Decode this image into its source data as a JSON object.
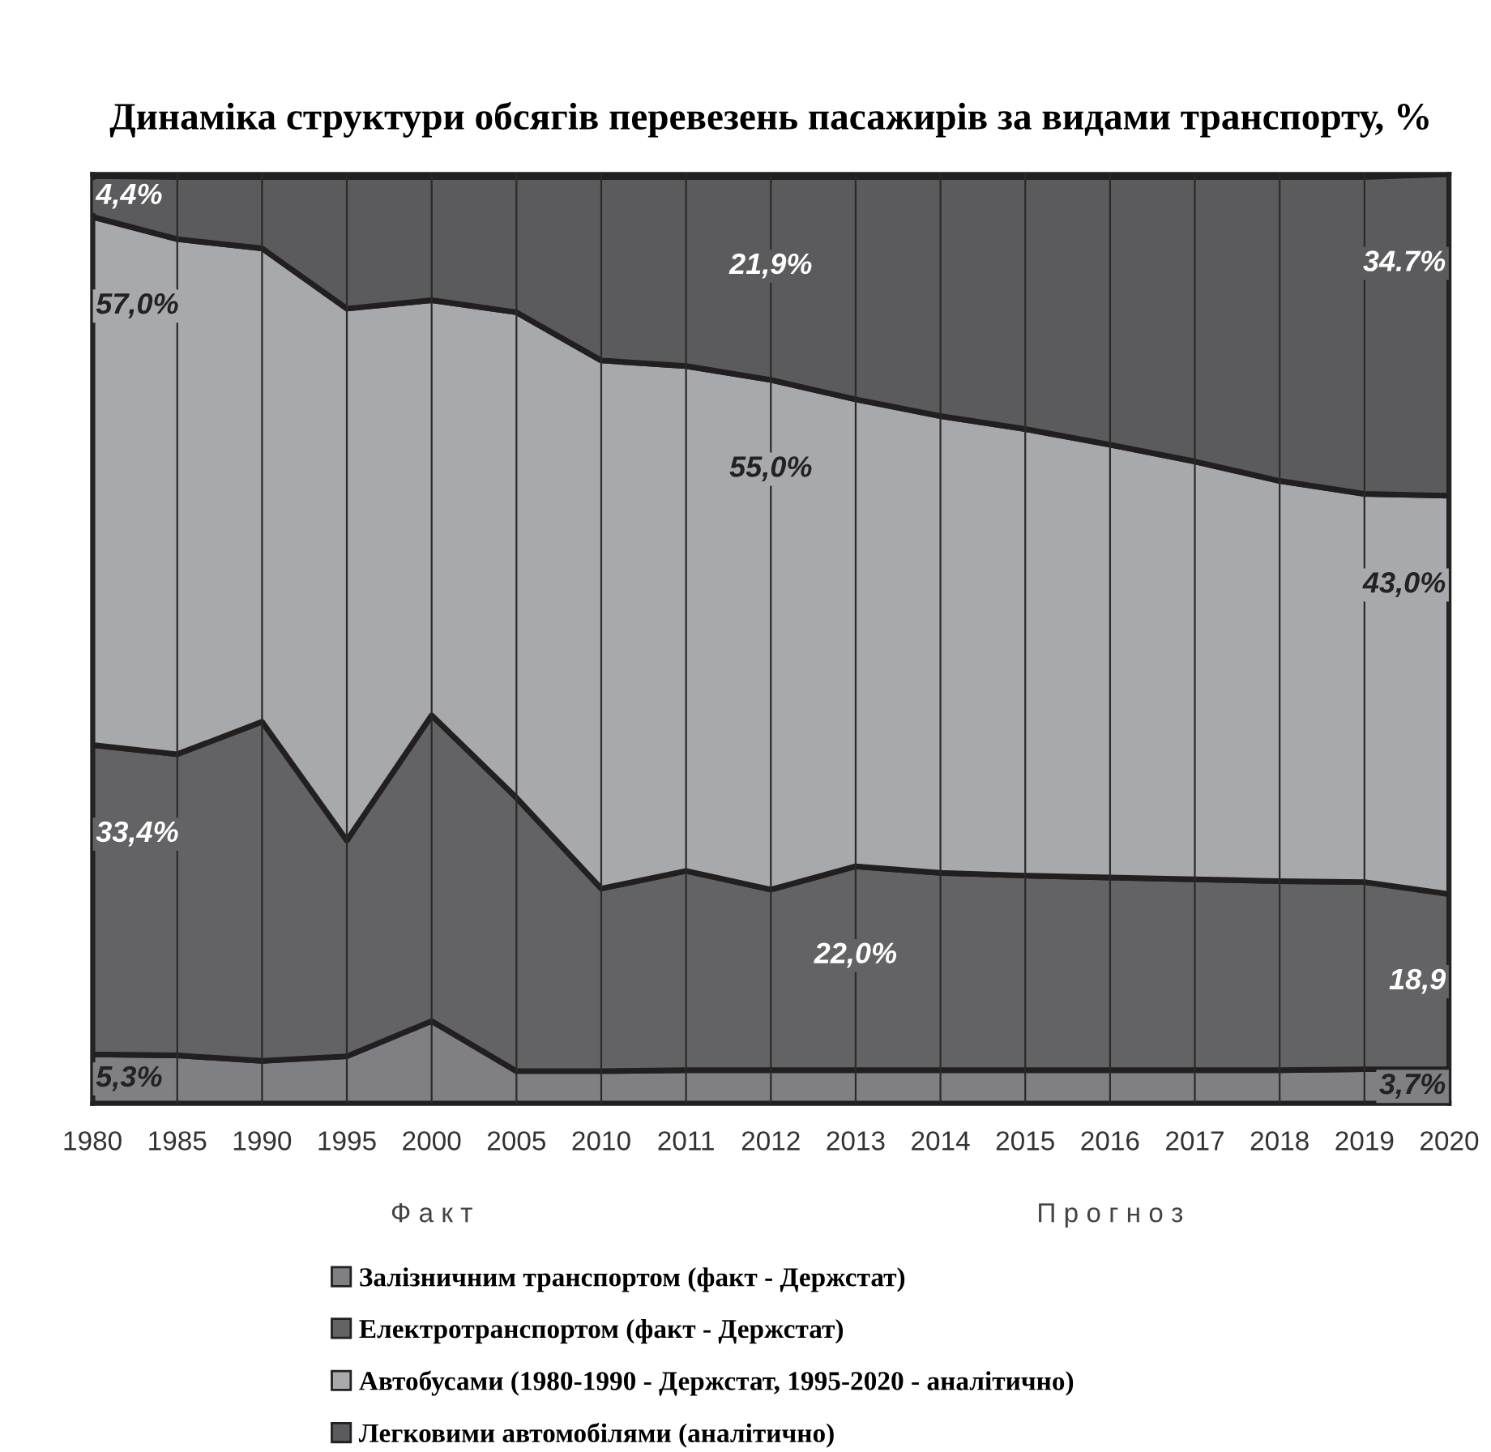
{
  "chart_data": {
    "type": "area",
    "stacked": true,
    "title": "Динаміка структури обсягів перевезень пасажирів за видами транспорту, %",
    "categories": [
      "1980",
      "1985",
      "1990",
      "1995",
      "2000",
      "2005",
      "2010",
      "2011",
      "2012",
      "2013",
      "2014",
      "2015",
      "2016",
      "2017",
      "2018",
      "2019",
      "2020"
    ],
    "series": [
      {
        "name": "Залізничним транспортом (факт - Держстат)",
        "color": "#808084",
        "values": [
          5.3,
          5.2,
          4.6,
          5.1,
          8.9,
          3.5,
          3.5,
          3.6,
          3.6,
          3.6,
          3.6,
          3.6,
          3.6,
          3.6,
          3.6,
          3.7,
          3.7
        ],
        "value_labels": [
          "5,3%",
          null,
          null,
          null,
          null,
          null,
          null,
          null,
          null,
          null,
          null,
          null,
          null,
          null,
          null,
          null,
          "3,7%"
        ]
      },
      {
        "name": "Електротранспортом (факт - Держстат)",
        "color": "#636366",
        "values": [
          33.4,
          32.5,
          36.6,
          23.3,
          33.0,
          29.5,
          19.7,
          21.5,
          19.5,
          22.0,
          21.3,
          21.0,
          20.8,
          20.6,
          20.4,
          20.2,
          18.9
        ],
        "value_labels": [
          "33,4%",
          null,
          null,
          null,
          null,
          null,
          null,
          null,
          null,
          "22,0%",
          null,
          null,
          null,
          null,
          null,
          null,
          "18,9"
        ]
      },
      {
        "name": "Автобусами (1980-1990 - Держстат, 1995-2020 - аналітично)",
        "color": "#a8a9ad",
        "values": [
          57.0,
          55.6,
          51.1,
          57.4,
          44.8,
          52.4,
          57.0,
          54.5,
          55.0,
          50.4,
          49.3,
          48.2,
          46.7,
          45.1,
          43.2,
          41.9,
          43.0
        ],
        "value_labels": [
          "57,0%",
          null,
          null,
          null,
          null,
          null,
          null,
          null,
          "55,0%",
          null,
          null,
          null,
          null,
          null,
          null,
          null,
          "43,0%"
        ]
      },
      {
        "name": "Легковими автомобілями (аналітично)",
        "color": "#5b5b5e",
        "values": [
          4.4,
          6.7,
          7.7,
          14.2,
          13.3,
          14.6,
          19.8,
          20.4,
          21.9,
          24.0,
          25.8,
          27.2,
          28.9,
          30.7,
          32.8,
          34.2,
          34.7
        ],
        "value_labels": [
          "4,4%",
          null,
          null,
          null,
          null,
          null,
          null,
          null,
          "21,9%",
          null,
          null,
          null,
          null,
          null,
          null,
          null,
          "34.7%"
        ]
      }
    ],
    "annotations": [
      "Ф а к т",
      "П р о г н о з"
    ],
    "grid": "x",
    "legend": "bottom",
    "tick_labels": "x"
  }
}
